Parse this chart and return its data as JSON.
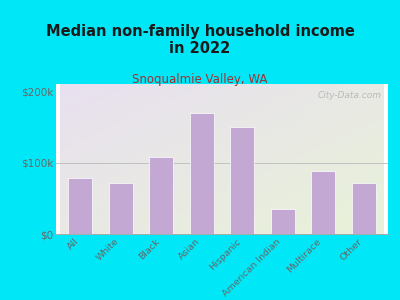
{
  "title": "Median non-family household income\nin 2022",
  "subtitle": "Snoqualmie Valley, WA",
  "categories": [
    "All",
    "White",
    "Black",
    "Asian",
    "Hispanic",
    "American Indian",
    "Multirace",
    "Other"
  ],
  "values": [
    78000,
    72000,
    108000,
    170000,
    150000,
    35000,
    88000,
    72000
  ],
  "bar_color": "#c4a8d4",
  "bar_edge_color": "#ffffff",
  "background_color": "#00e8f8",
  "plot_bg_topleft": "#e8e0f0",
  "plot_bg_bottomright": "#e8f2d8",
  "title_color": "#1a1a1a",
  "subtitle_color": "#a03030",
  "tick_color": "#666666",
  "watermark": "City-Data.com",
  "ylim": [
    0,
    210000
  ],
  "yticks": [
    0,
    100000,
    200000
  ],
  "ytick_labels": [
    "$0",
    "$100k",
    "$200k"
  ],
  "title_fontsize": 10.5,
  "subtitle_fontsize": 8.5
}
